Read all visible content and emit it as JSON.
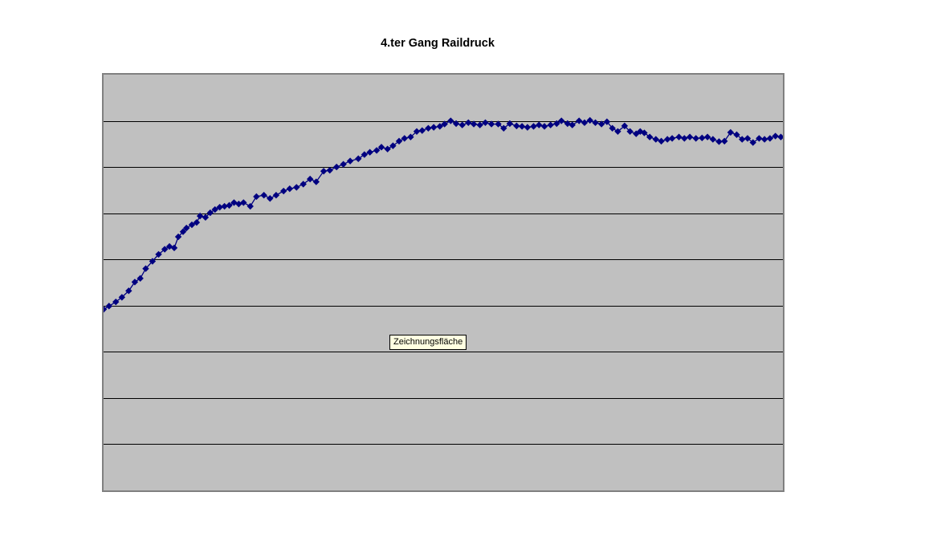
{
  "page": {
    "background_color": "#ffffff"
  },
  "chart": {
    "title": "4.ter Gang Raildruck",
    "tooltip_text": "Zeichnungsfläche",
    "colors": {
      "plot_fill": "#c0c0c0",
      "plot_border": "#808080",
      "gridline": "#000000",
      "series": "#000080",
      "tooltip_bg": "#ffffe1",
      "tooltip_border": "#000000",
      "title_color": "#000000"
    }
  },
  "chart_data": {
    "type": "line",
    "title": "4.ter Gang Raildruck",
    "xlabel": "",
    "ylabel": "",
    "legend": "none",
    "marker_style": "diamond",
    "axes": {
      "x_tick_labels_visible": false,
      "y_tick_labels_visible": false,
      "horizontal_gridlines": true,
      "gridline_bands": 9,
      "y_unit_note": "gridlines are unlabeled; values given in gridline units, 0 = plot bottom, 9 = plot top",
      "ylim": [
        0,
        9
      ],
      "xlim": [
        0,
        1
      ]
    },
    "series": [
      {
        "name": "",
        "points": [
          [
            0.0,
            3.92
          ],
          [
            0.008,
            3.99
          ],
          [
            0.018,
            4.08
          ],
          [
            0.027,
            4.18
          ],
          [
            0.037,
            4.32
          ],
          [
            0.046,
            4.51
          ],
          [
            0.054,
            4.59
          ],
          [
            0.062,
            4.8
          ],
          [
            0.072,
            4.96
          ],
          [
            0.081,
            5.11
          ],
          [
            0.09,
            5.22
          ],
          [
            0.097,
            5.28
          ],
          [
            0.104,
            5.25
          ],
          [
            0.11,
            5.49
          ],
          [
            0.117,
            5.6
          ],
          [
            0.122,
            5.68
          ],
          [
            0.13,
            5.75
          ],
          [
            0.137,
            5.8
          ],
          [
            0.142,
            5.94
          ],
          [
            0.15,
            5.91
          ],
          [
            0.157,
            6.01
          ],
          [
            0.164,
            6.08
          ],
          [
            0.171,
            6.13
          ],
          [
            0.178,
            6.15
          ],
          [
            0.185,
            6.17
          ],
          [
            0.192,
            6.23
          ],
          [
            0.199,
            6.2
          ],
          [
            0.206,
            6.23
          ],
          [
            0.216,
            6.15
          ],
          [
            0.225,
            6.36
          ],
          [
            0.236,
            6.39
          ],
          [
            0.245,
            6.32
          ],
          [
            0.254,
            6.39
          ],
          [
            0.265,
            6.48
          ],
          [
            0.274,
            6.53
          ],
          [
            0.284,
            6.56
          ],
          [
            0.294,
            6.63
          ],
          [
            0.304,
            6.74
          ],
          [
            0.313,
            6.68
          ],
          [
            0.324,
            6.91
          ],
          [
            0.333,
            6.93
          ],
          [
            0.343,
            7.0
          ],
          [
            0.353,
            7.06
          ],
          [
            0.363,
            7.13
          ],
          [
            0.375,
            7.18
          ],
          [
            0.384,
            7.27
          ],
          [
            0.392,
            7.32
          ],
          [
            0.402,
            7.36
          ],
          [
            0.409,
            7.43
          ],
          [
            0.418,
            7.39
          ],
          [
            0.426,
            7.46
          ],
          [
            0.435,
            7.56
          ],
          [
            0.443,
            7.62
          ],
          [
            0.452,
            7.65
          ],
          [
            0.461,
            7.77
          ],
          [
            0.469,
            7.79
          ],
          [
            0.478,
            7.84
          ],
          [
            0.486,
            7.86
          ],
          [
            0.495,
            7.88
          ],
          [
            0.502,
            7.93
          ],
          [
            0.511,
            8.0
          ],
          [
            0.519,
            7.94
          ],
          [
            0.528,
            7.91
          ],
          [
            0.537,
            7.96
          ],
          [
            0.545,
            7.93
          ],
          [
            0.554,
            7.91
          ],
          [
            0.562,
            7.96
          ],
          [
            0.571,
            7.93
          ],
          [
            0.581,
            7.93
          ],
          [
            0.589,
            7.84
          ],
          [
            0.598,
            7.94
          ],
          [
            0.608,
            7.89
          ],
          [
            0.616,
            7.88
          ],
          [
            0.624,
            7.86
          ],
          [
            0.633,
            7.88
          ],
          [
            0.641,
            7.91
          ],
          [
            0.649,
            7.88
          ],
          [
            0.658,
            7.91
          ],
          [
            0.667,
            7.94
          ],
          [
            0.674,
            8.0
          ],
          [
            0.683,
            7.94
          ],
          [
            0.69,
            7.91
          ],
          [
            0.7,
            8.0
          ],
          [
            0.708,
            7.96
          ],
          [
            0.716,
            8.01
          ],
          [
            0.724,
            7.96
          ],
          [
            0.733,
            7.93
          ],
          [
            0.741,
            7.98
          ],
          [
            0.749,
            7.84
          ],
          [
            0.757,
            7.77
          ],
          [
            0.767,
            7.89
          ],
          [
            0.775,
            7.77
          ],
          [
            0.784,
            7.72
          ],
          [
            0.79,
            7.77
          ],
          [
            0.796,
            7.74
          ],
          [
            0.804,
            7.65
          ],
          [
            0.813,
            7.6
          ],
          [
            0.821,
            7.56
          ],
          [
            0.83,
            7.6
          ],
          [
            0.837,
            7.62
          ],
          [
            0.847,
            7.65
          ],
          [
            0.855,
            7.62
          ],
          [
            0.863,
            7.65
          ],
          [
            0.872,
            7.62
          ],
          [
            0.881,
            7.63
          ],
          [
            0.889,
            7.65
          ],
          [
            0.897,
            7.6
          ],
          [
            0.906,
            7.55
          ],
          [
            0.914,
            7.56
          ],
          [
            0.923,
            7.75
          ],
          [
            0.932,
            7.7
          ],
          [
            0.94,
            7.6
          ],
          [
            0.948,
            7.62
          ],
          [
            0.956,
            7.53
          ],
          [
            0.965,
            7.62
          ],
          [
            0.973,
            7.6
          ],
          [
            0.981,
            7.62
          ],
          [
            0.989,
            7.67
          ],
          [
            0.997,
            7.65
          ]
        ]
      }
    ]
  }
}
